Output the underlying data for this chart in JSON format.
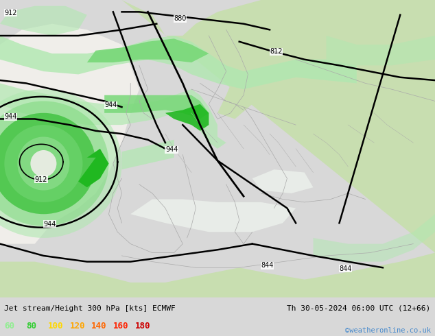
{
  "title_left": "Jet stream/Height 300 hPa [kts] ECMWF",
  "title_right": "Th 30-05-2024 06:00 UTC (12+66)",
  "copyright": "©weatheronline.co.uk",
  "legend_values": [
    60,
    80,
    100,
    120,
    140,
    160,
    180
  ],
  "leg_colors": [
    "#90ee90",
    "#32cd32",
    "#ffd700",
    "#ffa500",
    "#ff6600",
    "#ff2200",
    "#cc0000"
  ],
  "bg_color": "#d8d8d8",
  "map_ocean": "#f0eeea",
  "map_land_light": "#c8deb0",
  "map_land_green": "#b8d898",
  "jet_light": "#b0e8b0",
  "jet_medium": "#78d878",
  "jet_dark": "#20b820",
  "coast_color": "#aaaaaa",
  "contour_color": "#000000",
  "figsize": [
    6.34,
    4.9
  ],
  "dpi": 100
}
